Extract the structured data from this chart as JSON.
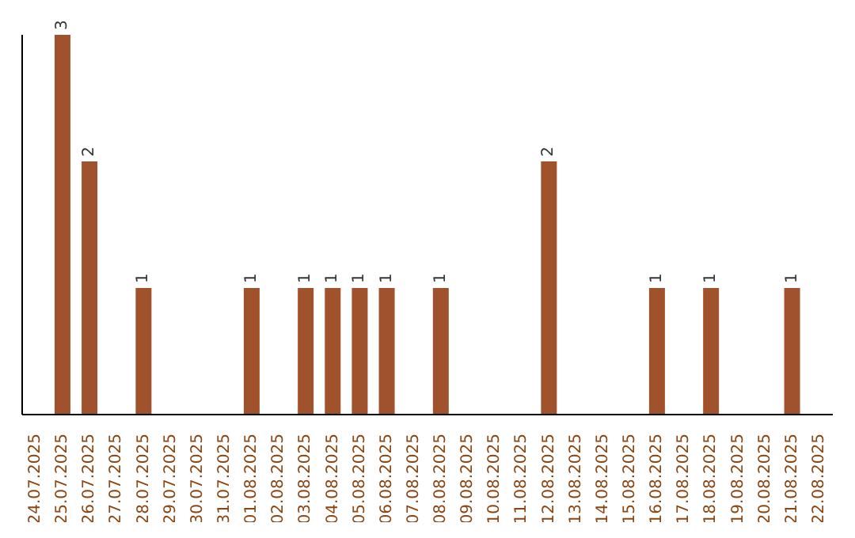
{
  "chart_data": {
    "type": "bar",
    "categories": [
      "24.07.2025",
      "25.07.2025",
      "26.07.2025",
      "27.07.2025",
      "28.07.2025",
      "29.07.2025",
      "30.07.2025",
      "31.07.2025",
      "01.08.2025",
      "02.08.2025",
      "03.08.2025",
      "04.08.2025",
      "05.08.2025",
      "06.08.2025",
      "07.08.2025",
      "08.08.2025",
      "09.08.2025",
      "10.08.2025",
      "11.08.2025",
      "12.08.2025",
      "13.08.2025",
      "14.08.2025",
      "15.08.2025",
      "16.08.2025",
      "17.08.2025",
      "18.08.2025",
      "19.08.2025",
      "20.08.2025",
      "21.08.2025",
      "22.08.2025"
    ],
    "values": [
      null,
      3,
      2,
      null,
      1,
      null,
      null,
      null,
      1,
      null,
      1,
      1,
      1,
      1,
      null,
      1,
      null,
      null,
      null,
      2,
      null,
      null,
      null,
      1,
      null,
      1,
      null,
      null,
      1,
      null
    ],
    "color": "#a0522d",
    "data_labels": true,
    "tick_labels": "x"
  }
}
